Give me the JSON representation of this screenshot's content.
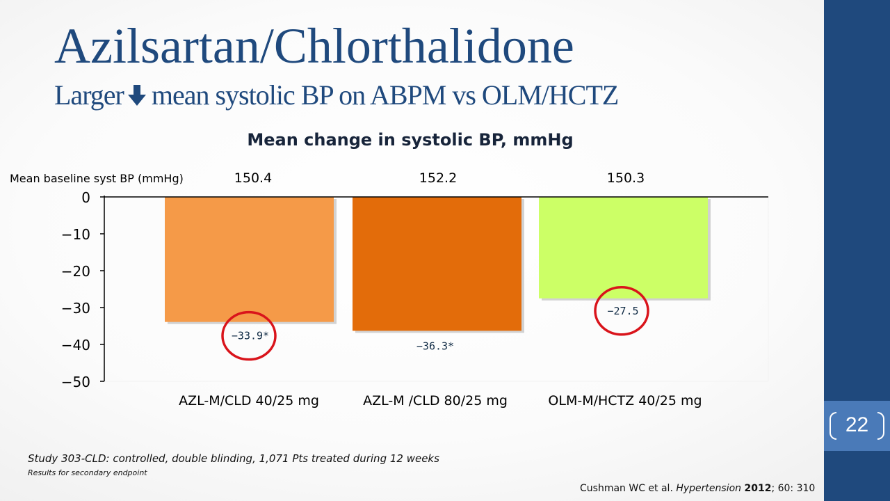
{
  "slide": {
    "title": "Azilsartan/Chlorthalidone",
    "subtitle_before": "Larger",
    "subtitle_icon": "down-arrow-icon",
    "subtitle_after": "mean systolic BP on ABPM vs OLM/HCTZ",
    "footnote_main": "Study 303-CLD: controlled, double blinding, 1,071 Pts treated during 12 weeks",
    "footnote_small": "Results for secondary endpoint",
    "citation": {
      "authors": "Cushman WC et al. ",
      "journal": "Hypertension",
      "year": "2012",
      "rest": "; 60: 310"
    },
    "page_number": "22"
  },
  "colors": {
    "title": "#1f497d",
    "sidebar": "#1f497d",
    "page_box": "#4a7ab8",
    "highlight_circle": "#d9141b"
  },
  "chart_data": {
    "type": "bar",
    "title": "Mean change in systolic BP, mmHg",
    "baseline_label": "Mean baseline syst BP (mmHg)",
    "categories": [
      "AZL-M/CLD 40/25 mg",
      "AZL-M /CLD 80/25 mg",
      "OLM-M/HCTZ 40/25 mg"
    ],
    "baselines": [
      "150.4",
      "152.2",
      "150.3"
    ],
    "values": [
      -33.9,
      -36.3,
      -27.5
    ],
    "value_labels": [
      "−33.9*",
      "−36.3*",
      "−27.5"
    ],
    "bar_colors": [
      "#f59a48",
      "#e36c0a",
      "#ccff66"
    ],
    "highlighted": [
      true,
      false,
      true
    ],
    "ylim": [
      -50,
      0
    ],
    "yticks": [
      0,
      -10,
      -20,
      -30,
      -40,
      -50
    ],
    "ytick_labels": [
      "0",
      "−10",
      "−20",
      "−30",
      "−40",
      "−50"
    ],
    "legend": "none",
    "grid": false
  }
}
